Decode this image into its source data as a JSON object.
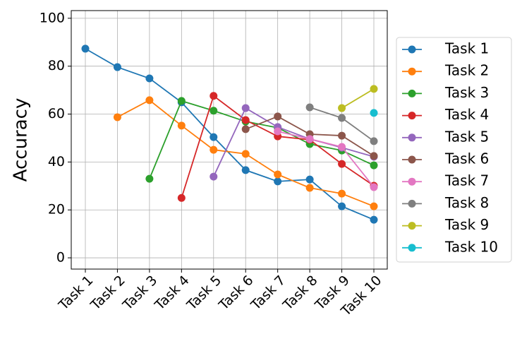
{
  "chart_data": {
    "type": "line",
    "y_label": "Accuracy",
    "categories": [
      "Task 1",
      "Task 2",
      "Task 3",
      "Task 4",
      "Task 5",
      "Task 6",
      "Task 7",
      "Task 8",
      "Task 9",
      "Task 10"
    ],
    "series": [
      {
        "name": "Task 1",
        "color": "#1f77b4",
        "values": [
          87.3,
          79.6,
          74.9,
          64.9,
          50.4,
          36.6,
          31.9,
          32.7,
          21.5,
          15.9
        ]
      },
      {
        "name": "Task 2",
        "color": "#ff7f0e",
        "values": [
          null,
          58.7,
          65.8,
          55.2,
          45.1,
          43.4,
          34.8,
          29.2,
          26.8,
          21.5
        ]
      },
      {
        "name": "Task 3",
        "color": "#2ca02c",
        "values": [
          null,
          null,
          33.0,
          65.5,
          61.4,
          56.9,
          54.3,
          47.5,
          44.8,
          38.6
        ]
      },
      {
        "name": "Task 4",
        "color": "#d62728",
        "values": [
          null,
          null,
          null,
          25.0,
          67.6,
          57.5,
          50.7,
          49.3,
          39.2,
          30.1
        ]
      },
      {
        "name": "Task 5",
        "color": "#9467bd",
        "values": [
          null,
          null,
          null,
          null,
          33.9,
          62.5,
          54.6,
          49.6,
          46.0,
          42.2
        ]
      },
      {
        "name": "Task 6",
        "color": "#8c564b",
        "values": [
          null,
          null,
          null,
          null,
          null,
          53.7,
          59.0,
          51.6,
          51.0,
          42.5
        ]
      },
      {
        "name": "Task 7",
        "color": "#e377c2",
        "values": [
          null,
          null,
          null,
          null,
          null,
          null,
          52.8,
          49.6,
          46.3,
          29.5
        ]
      },
      {
        "name": "Task 8",
        "color": "#7f7f7f",
        "values": [
          null,
          null,
          null,
          null,
          null,
          null,
          null,
          62.8,
          58.4,
          48.7
        ]
      },
      {
        "name": "Task 9",
        "color": "#bcbd22",
        "values": [
          null,
          null,
          null,
          null,
          null,
          null,
          null,
          null,
          62.5,
          70.5
        ]
      },
      {
        "name": "Task 10",
        "color": "#17becf",
        "values": [
          null,
          null,
          null,
          null,
          null,
          null,
          null,
          null,
          null,
          60.5
        ]
      }
    ],
    "ylim": [
      -4.7,
      103.2
    ],
    "yticks": [
      0,
      20,
      40,
      60,
      80,
      100
    ],
    "grid": true,
    "legend": "outside right"
  }
}
